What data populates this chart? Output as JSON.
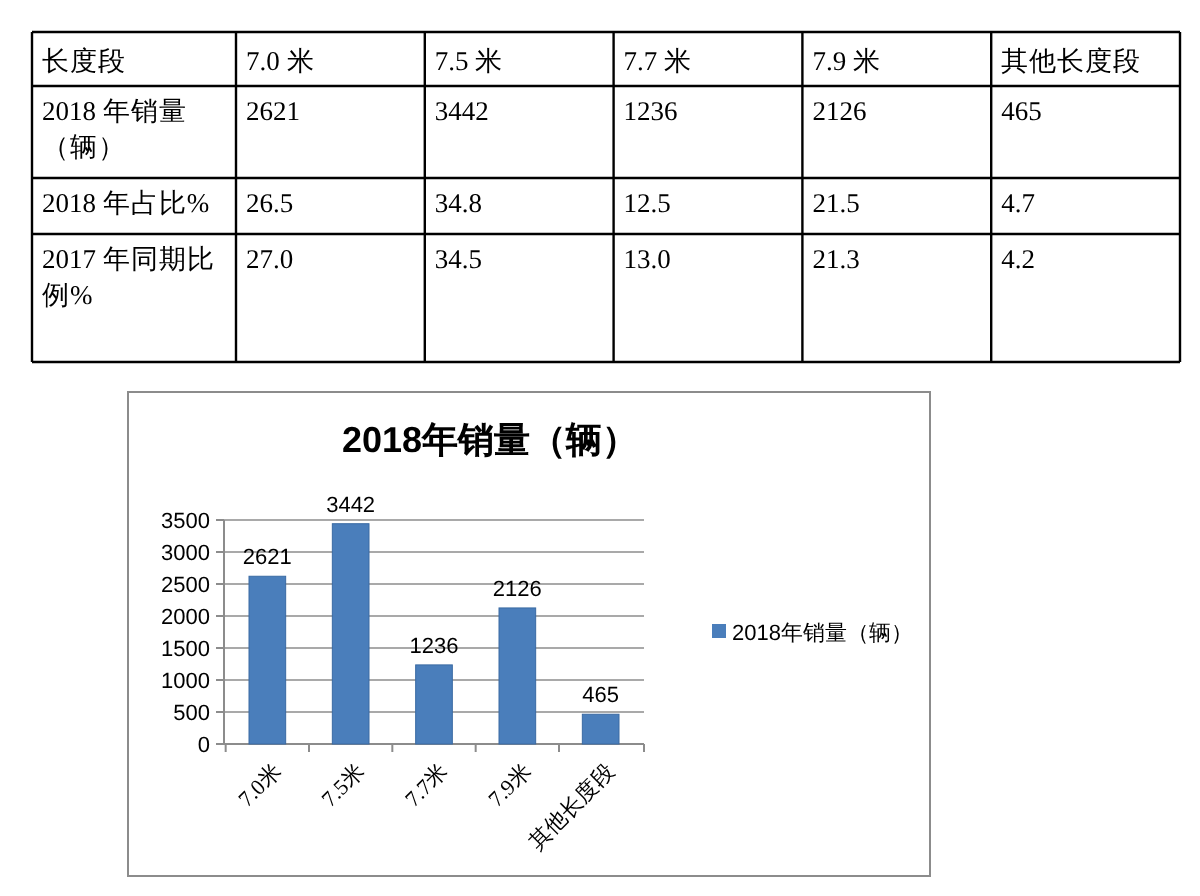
{
  "chart_data": [
    {
      "type": "other",
      "xlabel": "长度段",
      "categories": [
        "7.0 米",
        "7.5 米",
        "7.7 米",
        "7.9 米",
        "其他长度段"
      ],
      "series": [
        {
          "name": "2018 年销量（辆）",
          "values": [
            2621,
            3442,
            1236,
            2126,
            465
          ]
        },
        {
          "name": "2018 年占比%",
          "values": [
            26.5,
            34.8,
            12.5,
            21.5,
            4.7
          ]
        },
        {
          "name": "2017 年同期比例%",
          "values": [
            27.0,
            34.5,
            13.0,
            21.3,
            4.2
          ],
          "value_labels": [
            "27.0",
            "34.5",
            "13.0",
            "21.3",
            "4.2"
          ]
        }
      ],
      "data_labels": true
    },
    {
      "type": "bar",
      "title": "2018年销量（辆）",
      "categories": [
        "7.0米",
        "7.5米",
        "7.7米",
        "7.9米",
        "其他长度段"
      ],
      "series": [
        {
          "name": "2018年销量（辆）",
          "color": "#4a7ebb",
          "values": [
            2621,
            3442,
            1236,
            2126,
            465
          ]
        }
      ],
      "ylim": [
        0,
        3500
      ],
      "yticks": [
        0,
        500,
        1000,
        1500,
        2000,
        2500,
        3000,
        3500
      ],
      "grid": "y",
      "data_labels": true,
      "legend": "right"
    }
  ]
}
